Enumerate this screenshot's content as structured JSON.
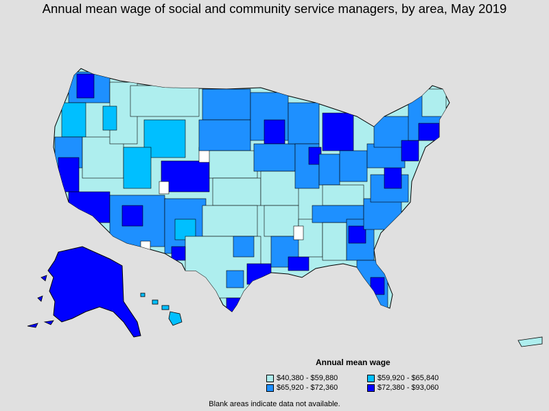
{
  "title": "Annual mean wage of social and community service managers, by area, May 2019",
  "legend": {
    "title": "Annual mean wage",
    "items": [
      {
        "label": "$40,380 - $59,880",
        "color": "#aeeeee"
      },
      {
        "label": "$59,920 - $65,840",
        "color": "#00bfff"
      },
      {
        "label": "$65,920 - $72,360",
        "color": "#1e90ff"
      },
      {
        "label": "$72,380 - $93,060",
        "color": "#0000ff"
      }
    ]
  },
  "note": "Blank areas indicate data not available.",
  "colors": {
    "background": "#e0e0e0",
    "no_data": "#ffffff",
    "border": "#000000"
  }
}
